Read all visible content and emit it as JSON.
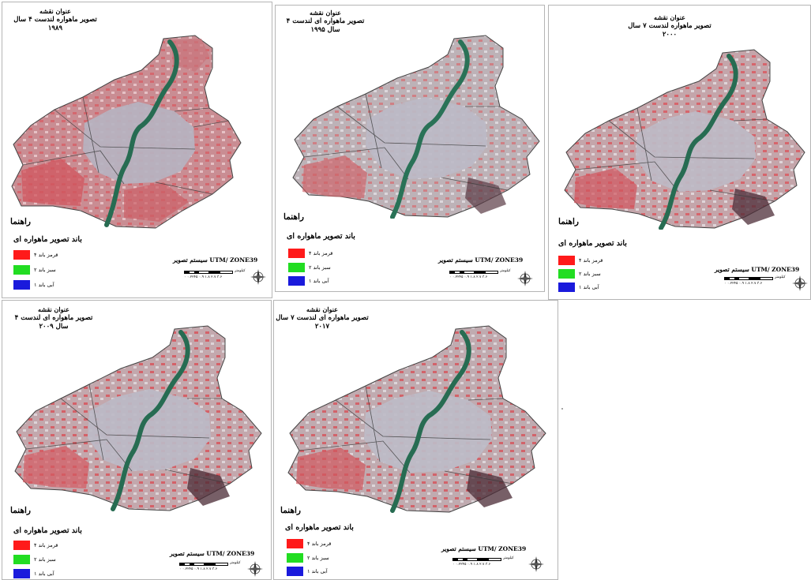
{
  "colors": {
    "band_red": "#ff1a1a",
    "band_green": "#22dd22",
    "band_blue": "#1a1adc",
    "river": "#2a6e55",
    "urban": "#b9b6c2",
    "vegetation": "#c96f73"
  },
  "panels": [
    {
      "title_head": "عنوان نقشه",
      "title_sub": "تصویر ماهواره لندست ۴ سال ۱۹۸۹",
      "legend_head": "راهنما",
      "legend_title": "باند تصویر ماهواره ای",
      "bands": [
        "قرمز باند ۴",
        "سبز باند ۲",
        "آبی باند ۱"
      ],
      "system": "سیستم تصویر  UTM/ ZONE39",
      "scale_unit": "کیلومتر",
      "scale_ticks": "۰ ۰.۲۲۴۵ ۰.۹ ۱.۸ ۲.۷ ۳.۶"
    },
    {
      "title_head": "عنوان نقشه",
      "title_sub": "تصویر ماهواره ای لندست ۴ سال ۱۹۹۵",
      "legend_head": "راهنما",
      "legend_title": "باند تصویر ماهواره ای",
      "bands": [
        "قرمز باند ۴",
        "سبز باند ۲",
        "آبی باند ۱"
      ],
      "system": "سیستم تصویر  UTM/ ZONE39",
      "scale_unit": "کیلومتر",
      "scale_ticks": "۰ ۰.۲۲۴۵ ۰.۹ ۱.۸ ۲.۷ ۳.۶"
    },
    {
      "title_head": "عنوان نقشه",
      "title_sub": "تصویر ماهواره لندست ۷ سال ۲۰۰۰",
      "legend_head": "راهنما",
      "legend_title": "باند تصویر ماهواره ای",
      "bands": [
        "قرمز باند ۴",
        "سبز باند ۲",
        "آبی باند ۱"
      ],
      "system": "سیستم تصویر  UTM/ ZONE39",
      "scale_unit": "کیلومتر",
      "scale_ticks": "۰ ۰.۲۲۴۵ ۰.۹ ۱.۸ ۲.۷ ۳.۶"
    },
    {
      "title_head": "عنوان نقشه",
      "title_sub": "تصویر ماهواره ای لندست ۴ سال ۲۰۰۹",
      "legend_head": "راهنما",
      "legend_title": "باند تصویر ماهواره ای",
      "bands": [
        "قرمز باند ۴",
        "سبز باند ۲",
        "آبی باند ۱"
      ],
      "system": "سیستم تصویر  UTM/ ZONE39",
      "scale_unit": "کیلومتر",
      "scale_ticks": "۰ ۰.۲۲۴۵ ۰.۹ ۱.۸ ۲.۷ ۳.۶"
    },
    {
      "title_head": "عنوان نقشه",
      "title_sub": "تصویر ماهواره ای لندست ۷ سال ۲۰۱۷",
      "legend_head": "راهنما",
      "legend_title": "باند تصویر ماهواره ای",
      "bands": [
        "قرمز باند ۴",
        "سبز باند ۲",
        "آبی باند ۱"
      ],
      "system": "سیستم تصویر  UTM/ ZONE39",
      "scale_unit": "کیلومتر",
      "scale_ticks": "۰ ۰.۲۲۴۵ ۰.۹ ۱.۸ ۲.۷ ۳.۶"
    }
  ]
}
